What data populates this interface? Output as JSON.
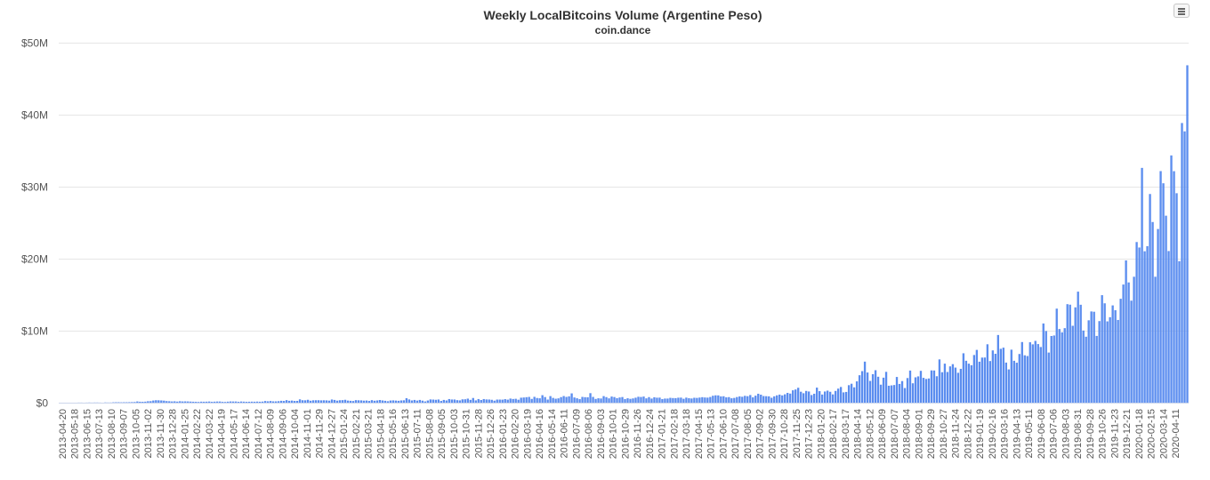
{
  "chart": {
    "title": "Weekly LocalBitcoins Volume (Argentine Peso)",
    "subtitle": "coin.dance",
    "menu_icon": "hamburger-menu-icon"
  },
  "colors": {
    "bar": "#5b8def",
    "grid": "#e6e6e6",
    "axis_text": "#555555",
    "axis_line": "#ccd6eb"
  },
  "chart_data": {
    "type": "bar",
    "title": "Weekly LocalBitcoins Volume (Argentine Peso)",
    "subtitle": "coin.dance",
    "xlabel": "",
    "ylabel": "",
    "ylim": [
      0,
      50000000
    ],
    "y_ticks": [
      0,
      10000000,
      20000000,
      30000000,
      40000000,
      50000000
    ],
    "y_tick_labels": [
      "$0",
      "$10M",
      "$20M",
      "$30M",
      "$40M",
      "$50M"
    ],
    "grid": true,
    "legend": "none",
    "x_tick_labels": [
      "2013-04-20",
      "2013-05-18",
      "2013-06-15",
      "2013-07-13",
      "2013-08-10",
      "2013-09-07",
      "2013-10-05",
      "2013-11-02",
      "2013-11-30",
      "2013-12-28",
      "2014-01-25",
      "2014-02-22",
      "2014-03-22",
      "2014-04-19",
      "2014-05-17",
      "2014-06-14",
      "2014-07-12",
      "2014-08-09",
      "2014-09-06",
      "2014-10-04",
      "2014-11-01",
      "2014-11-29",
      "2014-12-27",
      "2015-01-24",
      "2015-02-21",
      "2015-03-21",
      "2015-04-18",
      "2015-05-16",
      "2015-06-13",
      "2015-07-11",
      "2015-08-08",
      "2015-09-05",
      "2015-10-03",
      "2015-10-31",
      "2015-11-28",
      "2015-12-26",
      "2016-01-23",
      "2016-02-20",
      "2016-03-19",
      "2016-04-16",
      "2016-05-14",
      "2016-06-11",
      "2016-07-09",
      "2016-08-06",
      "2016-09-03",
      "2016-10-01",
      "2016-10-29",
      "2016-11-26",
      "2016-12-24",
      "2017-01-21",
      "2017-02-18",
      "2017-03-18",
      "2017-04-15",
      "2017-05-13",
      "2017-06-10",
      "2017-07-08",
      "2017-08-05",
      "2017-09-02",
      "2017-09-30",
      "2017-10-28",
      "2017-11-25",
      "2017-12-23",
      "2018-01-20",
      "2018-02-17",
      "2018-03-17",
      "2018-04-14",
      "2018-05-12",
      "2018-06-09",
      "2018-07-07",
      "2018-08-04",
      "2018-09-01",
      "2018-09-29",
      "2018-10-27",
      "2018-11-24",
      "2018-12-22",
      "2019-01-19",
      "2019-02-16",
      "2019-03-16",
      "2019-04-13",
      "2019-05-11",
      "2019-06-08",
      "2019-07-06",
      "2019-08-03",
      "2019-08-31",
      "2019-09-28",
      "2019-10-26",
      "2019-11-23",
      "2019-12-21",
      "2020-01-18",
      "2020-02-15",
      "2020-03-14",
      "2020-04-11"
    ],
    "series": [
      {
        "values": [
          0,
          0,
          0,
          0,
          0,
          0,
          0,
          0.01,
          0.01,
          0,
          0.01,
          0.02,
          0.01,
          0.02,
          0.02,
          0.01,
          0,
          0.03,
          0.02,
          0.02,
          0.05,
          0.06,
          0.06,
          0.05,
          0.06,
          0.06,
          0.07,
          0.08,
          0.09,
          0.17,
          0.13,
          0.12,
          0.14,
          0.2,
          0.21,
          0.3,
          0.34,
          0.33,
          0.31,
          0.28,
          0.22,
          0.2,
          0.17,
          0.19,
          0.15,
          0.2,
          0.17,
          0.18,
          0.17,
          0.15,
          0.13,
          0.12,
          0.1,
          0.14,
          0.13,
          0.14,
          0.16,
          0.12,
          0.14,
          0.16,
          0.16,
          0.11,
          0.1,
          0.14,
          0.17,
          0.16,
          0.16,
          0.12,
          0.16,
          0.14,
          0.12,
          0.13,
          0.14,
          0.13,
          0.15,
          0.13,
          0.15,
          0.23,
          0.19,
          0.23,
          0.18,
          0.18,
          0.21,
          0.26,
          0.24,
          0.35,
          0.26,
          0.29,
          0.24,
          0.25,
          0.46,
          0.34,
          0.33,
          0.4,
          0.27,
          0.33,
          0.34,
          0.34,
          0.32,
          0.33,
          0.32,
          0.28,
          0.44,
          0.38,
          0.28,
          0.34,
          0.35,
          0.4,
          0.29,
          0.26,
          0.23,
          0.35,
          0.33,
          0.32,
          0.28,
          0.3,
          0.24,
          0.35,
          0.27,
          0.31,
          0.37,
          0.31,
          0.26,
          0.2,
          0.3,
          0.32,
          0.29,
          0.26,
          0.31,
          0.33,
          0.62,
          0.45,
          0.31,
          0.38,
          0.29,
          0.38,
          0.28,
          0.17,
          0.3,
          0.45,
          0.43,
          0.4,
          0.44,
          0.24,
          0.38,
          0.31,
          0.5,
          0.44,
          0.44,
          0.35,
          0.32,
          0.46,
          0.47,
          0.56,
          0.39,
          0.65,
          0.32,
          0.5,
          0.37,
          0.5,
          0.45,
          0.44,
          0.4,
          0.28,
          0.43,
          0.43,
          0.42,
          0.49,
          0.42,
          0.57,
          0.51,
          0.54,
          0.41,
          0.69,
          0.72,
          0.76,
          0.8,
          0.52,
          0.81,
          0.65,
          0.61,
          1.04,
          0.78,
          0.43,
          0.91,
          0.66,
          0.55,
          0.6,
          0.77,
          0.92,
          0.8,
          0.88,
          1.29,
          0.72,
          0.61,
          0.49,
          0.8,
          0.76,
          0.75,
          1.32,
          0.8,
          0.52,
          0.61,
          0.58,
          0.91,
          0.77,
          0.6,
          0.85,
          0.78,
          0.63,
          0.72,
          0.78,
          0.5,
          0.61,
          0.53,
          0.59,
          0.69,
          0.82,
          0.79,
          0.85,
          0.6,
          0.77,
          0.57,
          0.75,
          0.69,
          0.7,
          0.5,
          0.57,
          0.57,
          0.67,
          0.64,
          0.63,
          0.69,
          0.7,
          0.54,
          0.7,
          0.62,
          0.58,
          0.68,
          0.66,
          0.71,
          0.76,
          0.72,
          0.7,
          0.79,
          0.96,
          1.02,
          1.01,
          0.87,
          0.89,
          0.74,
          0.77,
          0.61,
          0.66,
          0.78,
          0.87,
          0.82,
          0.95,
          0.9,
          1.06,
          0.74,
          0.97,
          1.24,
          1.11,
          0.92,
          0.9,
          0.88,
          0.68,
          0.88,
          1.02,
          1.12,
          1.01,
          1.16,
          1.36,
          1.26,
          1.72,
          1.83,
          2.07,
          1.52,
          1.31,
          1.63,
          1.55,
          1.06,
          1.24,
          2.09,
          1.6,
          1.13,
          1.55,
          1.67,
          1.51,
          1.15,
          1.63,
          1.95,
          2.18,
          1.43,
          1.49,
          2.43,
          2.63,
          2.13,
          2.96,
          3.81,
          4.38,
          5.7,
          4.19,
          3.02,
          3.96,
          4.51,
          3.6,
          2.5,
          3.47,
          4.28,
          2.35,
          2.4,
          2.45,
          3.57,
          2.6,
          3,
          2.03,
          3.42,
          4.46,
          2.69,
          3.52,
          3.65,
          4.42,
          3.45,
          3.29,
          3.36,
          4.48,
          4.47,
          3.67,
          6.01,
          4.23,
          5.42,
          4.26,
          5.04,
          5.35,
          4.87,
          4.15,
          4.7,
          6.86,
          5.82,
          5.42,
          5.2,
          6.62,
          7.33,
          5.69,
          6.26,
          6.27,
          8.11,
          5.78,
          7.26,
          6.79,
          9.4,
          7.48,
          7.64,
          5.57,
          4.62,
          7.36,
          5.82,
          5.55,
          6.76,
          8.42,
          6.58,
          6.48,
          8.39,
          8.1,
          8.58,
          8.14,
          7.73,
          11,
          9.95,
          6.96,
          9.26,
          9.33,
          13.06,
          10.23,
          9.77,
          10.35,
          13.68,
          13.61,
          10.68,
          13.24,
          15.42,
          13.6,
          10.02,
          9.16,
          11.44,
          12.67,
          12.63,
          9.27,
          11.33,
          14.93,
          13.8,
          11.29,
          11.87,
          13.51,
          12.84,
          11.49,
          14.43,
          16.41,
          19.76,
          16.7,
          14.17,
          17.49,
          22.31,
          21.55,
          32.61,
          21.03,
          21.74,
          28.98,
          25.09,
          17.49,
          24.12,
          32.16,
          30.47,
          25.97,
          21.06,
          34.34,
          32.15,
          29.09,
          19.65,
          38.84,
          37.68,
          46.86
        ]
      }
    ],
    "value_unit_multiplier": 1000000
  }
}
